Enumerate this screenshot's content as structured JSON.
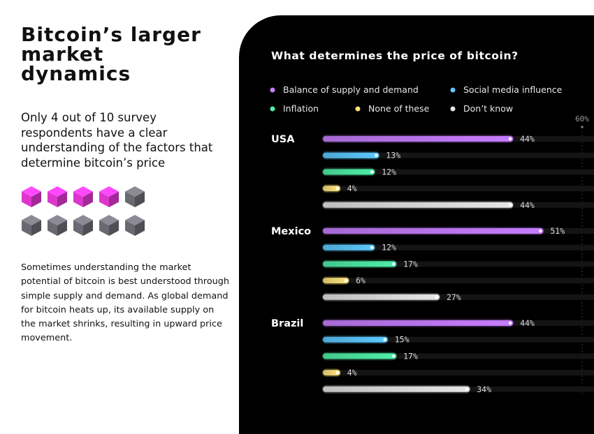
{
  "headline": [
    "Bitcoin’s larger",
    "market",
    "dynamics"
  ],
  "intro": "Only 4 out of 10 survey respondents have a clear understanding of the factors that determine bitcoin’s price",
  "cubes": {
    "total": 10,
    "highlighted": 4,
    "highlight_color": "#e83ad8",
    "base_color": "#6f6f78"
  },
  "body_text": "Sometimes understanding the market potential of bitcoin is best understood through simple supply and demand. As global demand for bitcoin heats up, its available supply on the market shrinks, resulting in upward price movement.",
  "chart_data": {
    "type": "bar",
    "orientation": "horizontal",
    "title": "What determines the price of bitcoin?",
    "unit": "%",
    "xlim": [
      0,
      60
    ],
    "reference_tick": "60%",
    "legend_position": "top",
    "categories": [
      "USA",
      "Mexico",
      "Brazil"
    ],
    "series": [
      {
        "name": "Balance of supply and demand",
        "color": "#c77dff",
        "values": [
          44,
          51,
          44
        ]
      },
      {
        "name": "Social media influence",
        "color": "#5cc8ff",
        "values": [
          13,
          12,
          15
        ]
      },
      {
        "name": "Inflation",
        "color": "#4ef0a8",
        "values": [
          12,
          17,
          17
        ]
      },
      {
        "name": "None of these",
        "color": "#ffe27a",
        "values": [
          4,
          6,
          4
        ]
      },
      {
        "name": "Don’t know",
        "color": "#e6e6e6",
        "values": [
          44,
          27,
          34
        ]
      }
    ]
  }
}
